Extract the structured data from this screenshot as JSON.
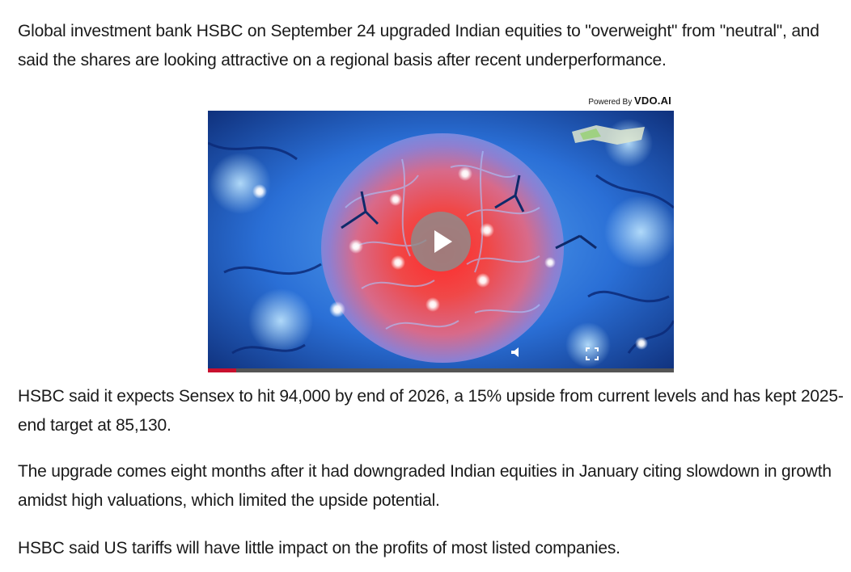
{
  "article": {
    "paragraphs": [
      "Global investment bank HSBC on September 24 upgraded Indian equities to \"overweight\" from \"neutral\", and said the shares are looking attractive on a regional basis after recent underperformance.",
      "HSBC said it expects Sensex to hit 94,000 by end of 2026, a 15% upside from current levels and has kept 2025-end target at 85,130.",
      "The upgrade comes eight months after it had downgraded Indian equities in January citing slowdown in growth amidst high valuations, which limited the upside potential.",
      "HSBC said US tariffs will have little impact on the profits of most listed companies."
    ]
  },
  "video_player": {
    "powered_by_label": "Powered By",
    "powered_by_brand": "VDO.AI",
    "progress_fraction": 0.06,
    "icons": {
      "play": "play-icon",
      "volume": "volume-icon",
      "fullscreen": "fullscreen-icon"
    },
    "colors": {
      "progress_fill": "#c8102e",
      "progress_track": "#555555",
      "play_button_bg": "#8c8c8c"
    }
  }
}
